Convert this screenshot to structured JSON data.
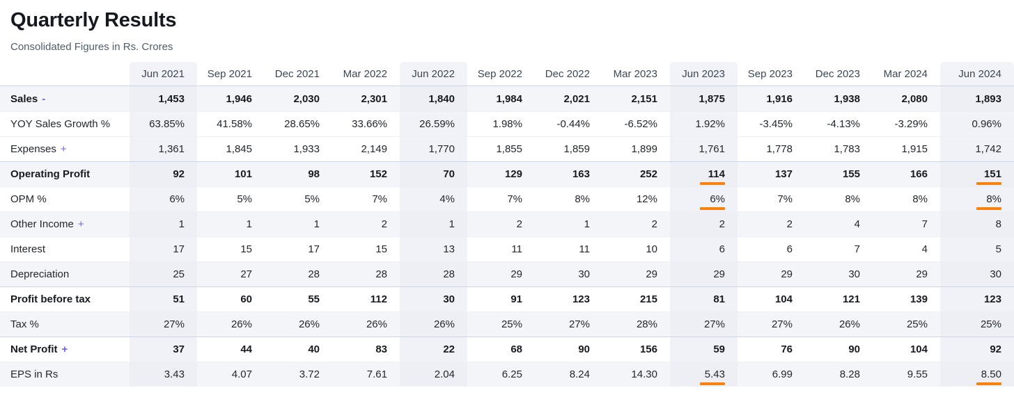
{
  "header": {
    "title": "Quarterly Results",
    "subtitle": "Consolidated Figures in Rs. Crores"
  },
  "colors": {
    "accent_underline": "#f8820e",
    "toggle_link": "#6e63e8",
    "stripe_row": "#f4f5f9",
    "highlight_column": "#f1f2f7"
  },
  "table": {
    "columns": [
      "Jun 2021",
      "Sep 2021",
      "Dec 2021",
      "Mar 2022",
      "Jun 2022",
      "Sep 2022",
      "Dec 2022",
      "Mar 2023",
      "Jun 2023",
      "Sep 2023",
      "Dec 2023",
      "Mar 2024",
      "Jun 2024"
    ],
    "highlighted_column_indexes": [
      0,
      4,
      8,
      12
    ],
    "rows": [
      {
        "label": "Sales",
        "toggle": "-",
        "bold": true,
        "striped": true,
        "section": false,
        "underline_cols": [],
        "values": [
          "1,453",
          "1,946",
          "2,030",
          "2,301",
          "1,840",
          "1,984",
          "2,021",
          "2,151",
          "1,875",
          "1,916",
          "1,938",
          "2,080",
          "1,893"
        ]
      },
      {
        "label": "YOY Sales Growth %",
        "toggle": "",
        "bold": false,
        "striped": false,
        "section": false,
        "underline_cols": [],
        "values": [
          "63.85%",
          "41.58%",
          "28.65%",
          "33.66%",
          "26.59%",
          "1.98%",
          "-0.44%",
          "-6.52%",
          "1.92%",
          "-3.45%",
          "-4.13%",
          "-3.29%",
          "0.96%"
        ]
      },
      {
        "label": "Expenses",
        "toggle": "+",
        "bold": false,
        "striped": false,
        "section": false,
        "underline_cols": [],
        "values": [
          "1,361",
          "1,845",
          "1,933",
          "2,149",
          "1,770",
          "1,855",
          "1,859",
          "1,899",
          "1,761",
          "1,778",
          "1,783",
          "1,915",
          "1,742"
        ]
      },
      {
        "label": "Operating Profit",
        "toggle": "",
        "bold": true,
        "striped": true,
        "section": true,
        "underline_cols": [
          8,
          12
        ],
        "values": [
          "92",
          "101",
          "98",
          "152",
          "70",
          "129",
          "163",
          "252",
          "114",
          "137",
          "155",
          "166",
          "151"
        ]
      },
      {
        "label": "OPM %",
        "toggle": "",
        "bold": false,
        "striped": false,
        "section": false,
        "underline_cols": [
          8,
          12
        ],
        "values": [
          "6%",
          "5%",
          "5%",
          "7%",
          "4%",
          "7%",
          "8%",
          "12%",
          "6%",
          "7%",
          "8%",
          "8%",
          "8%"
        ]
      },
      {
        "label": "Other Income",
        "toggle": "+",
        "bold": false,
        "striped": true,
        "section": false,
        "underline_cols": [],
        "values": [
          "1",
          "1",
          "1",
          "2",
          "1",
          "2",
          "1",
          "2",
          "2",
          "2",
          "4",
          "7",
          "8"
        ]
      },
      {
        "label": "Interest",
        "toggle": "",
        "bold": false,
        "striped": false,
        "section": false,
        "underline_cols": [],
        "values": [
          "17",
          "15",
          "17",
          "15",
          "13",
          "11",
          "11",
          "10",
          "6",
          "6",
          "7",
          "4",
          "5"
        ]
      },
      {
        "label": "Depreciation",
        "toggle": "",
        "bold": false,
        "striped": true,
        "section": false,
        "underline_cols": [],
        "values": [
          "25",
          "27",
          "28",
          "28",
          "28",
          "29",
          "30",
          "29",
          "29",
          "29",
          "30",
          "29",
          "30"
        ]
      },
      {
        "label": "Profit before tax",
        "toggle": "",
        "bold": true,
        "striped": false,
        "section": true,
        "underline_cols": [],
        "values": [
          "51",
          "60",
          "55",
          "112",
          "30",
          "91",
          "123",
          "215",
          "81",
          "104",
          "121",
          "139",
          "123"
        ]
      },
      {
        "label": "Tax %",
        "toggle": "",
        "bold": false,
        "striped": true,
        "section": false,
        "underline_cols": [],
        "values": [
          "27%",
          "26%",
          "26%",
          "26%",
          "26%",
          "25%",
          "27%",
          "28%",
          "27%",
          "27%",
          "26%",
          "25%",
          "25%"
        ]
      },
      {
        "label": "Net Profit",
        "toggle": "+",
        "bold": true,
        "striped": false,
        "section": true,
        "underline_cols": [],
        "values": [
          "37",
          "44",
          "40",
          "83",
          "22",
          "68",
          "90",
          "156",
          "59",
          "76",
          "90",
          "104",
          "92"
        ]
      },
      {
        "label": "EPS in Rs",
        "toggle": "",
        "bold": false,
        "striped": true,
        "section": false,
        "underline_cols": [
          8,
          12
        ],
        "values": [
          "3.43",
          "4.07",
          "3.72",
          "7.61",
          "2.04",
          "6.25",
          "8.24",
          "14.30",
          "5.43",
          "6.99",
          "8.28",
          "9.55",
          "8.50"
        ]
      }
    ]
  }
}
